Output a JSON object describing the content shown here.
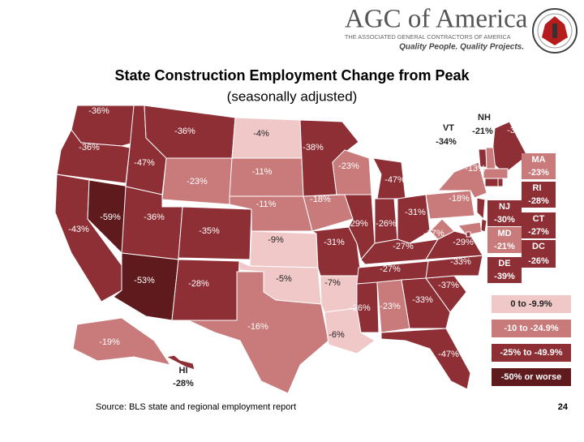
{
  "header": {
    "brand": "AGC of America",
    "brand_subtitle": "THE ASSOCIATED GENERAL CONTRACTORS OF AMERICA",
    "tagline": "Quality People. Quality Projects."
  },
  "title": "State Construction Employment Change from Peak",
  "subtitle": "(seasonally adjusted)",
  "map": {
    "regions": [
      {
        "label": "-36%",
        "color": "#8e2f35"
      },
      {
        "label": "-36%",
        "color": "#8e2f35"
      },
      {
        "label": "-43%",
        "color": "#8e2f35"
      },
      {
        "label": "-59%",
        "color": "#5e1a1c"
      },
      {
        "label": "-47%",
        "color": "#8e2f35"
      },
      {
        "label": "-36%",
        "color": "#8e2f35"
      },
      {
        "label": "-23%",
        "color": "#c97a7a"
      },
      {
        "label": "-36%",
        "color": "#8e2f35"
      },
      {
        "label": "-35%",
        "color": "#8e2f35"
      },
      {
        "label": "-53%",
        "color": "#5e1a1c"
      },
      {
        "label": "-28%",
        "color": "#8e2f35"
      },
      {
        "label": "-4%",
        "color": "#f0c8c8"
      },
      {
        "label": "-11%",
        "color": "#c97a7a"
      },
      {
        "label": "-11%",
        "color": "#c97a7a"
      },
      {
        "label": "-9%",
        "color": "#f0c8c8"
      },
      {
        "label": "-5%",
        "color": "#f0c8c8"
      },
      {
        "label": "-16%",
        "color": "#c97a7a"
      },
      {
        "label": "-38%",
        "color": "#8e2f35"
      },
      {
        "label": "-18%",
        "color": "#c97a7a"
      },
      {
        "label": "-31%",
        "color": "#8e2f35"
      },
      {
        "label": "-7%",
        "color": "#f0c8c8"
      },
      {
        "label": "-6%",
        "color": "#f0c8c8"
      },
      {
        "label": "-23%",
        "color": "#c97a7a"
      },
      {
        "label": "-29%",
        "color": "#8e2f35"
      },
      {
        "label": "-47%",
        "color": "#8e2f35"
      },
      {
        "label": "-26%",
        "color": "#8e2f35"
      },
      {
        "label": "-31%",
        "color": "#8e2f35"
      },
      {
        "label": "-27%",
        "color": "#8e2f35"
      },
      {
        "label": "-27%",
        "color": "#8e2f35"
      },
      {
        "label": "-26%",
        "color": "#8e2f35"
      },
      {
        "label": "-23%",
        "color": "#c97a7a"
      },
      {
        "label": "-33%",
        "color": "#8e2f35"
      },
      {
        "label": "-47%",
        "color": "#8e2f35"
      },
      {
        "label": "-37%",
        "color": "#8e2f35"
      },
      {
        "label": "-33%",
        "color": "#8e2f35"
      },
      {
        "label": "-29%",
        "color": "#8e2f35"
      },
      {
        "label": "-17%",
        "color": "#c97a7a"
      },
      {
        "label": "-18%",
        "color": "#c97a7a"
      },
      {
        "label": "-13%",
        "color": "#c97a7a"
      },
      {
        "label": "-30%",
        "color": "#8e2f35"
      },
      {
        "label": "-19%",
        "color": "#c97a7a"
      },
      {
        "name": "VT",
        "label": "-34%",
        "color": "#8e2f35"
      },
      {
        "name": "NH",
        "label": "-21%",
        "color": "#c97a7a"
      },
      {
        "name": "MA",
        "label": "-23%",
        "color": "#c97a7a"
      },
      {
        "name": "RI",
        "label": "-28%",
        "color": "#8e2f35"
      },
      {
        "name": "NJ",
        "label": "-30%",
        "color": "#8e2f35"
      },
      {
        "name": "CT",
        "label": "-27%",
        "color": "#8e2f35"
      },
      {
        "name": "MD",
        "label": "-21%",
        "color": "#c97a7a"
      },
      {
        "name": "DC",
        "label": "-26%",
        "color": "#8e2f35"
      },
      {
        "name": "DE",
        "label": "-39%",
        "color": "#8e2f35"
      },
      {
        "name": "HI",
        "label": "-28%",
        "color": "#8e2f35"
      }
    ],
    "legend": [
      {
        "text": "0 to -9.9%",
        "color": "#f0c8c8"
      },
      {
        "text": "-10 to -24.9%",
        "color": "#c97a7a"
      },
      {
        "text": "-25% to -49.9%",
        "color": "#8e2f35"
      },
      {
        "text": "-50% or worse",
        "color": "#5e1a1c"
      }
    ]
  },
  "source": "Source: BLS state and regional employment report",
  "page_number": "24"
}
